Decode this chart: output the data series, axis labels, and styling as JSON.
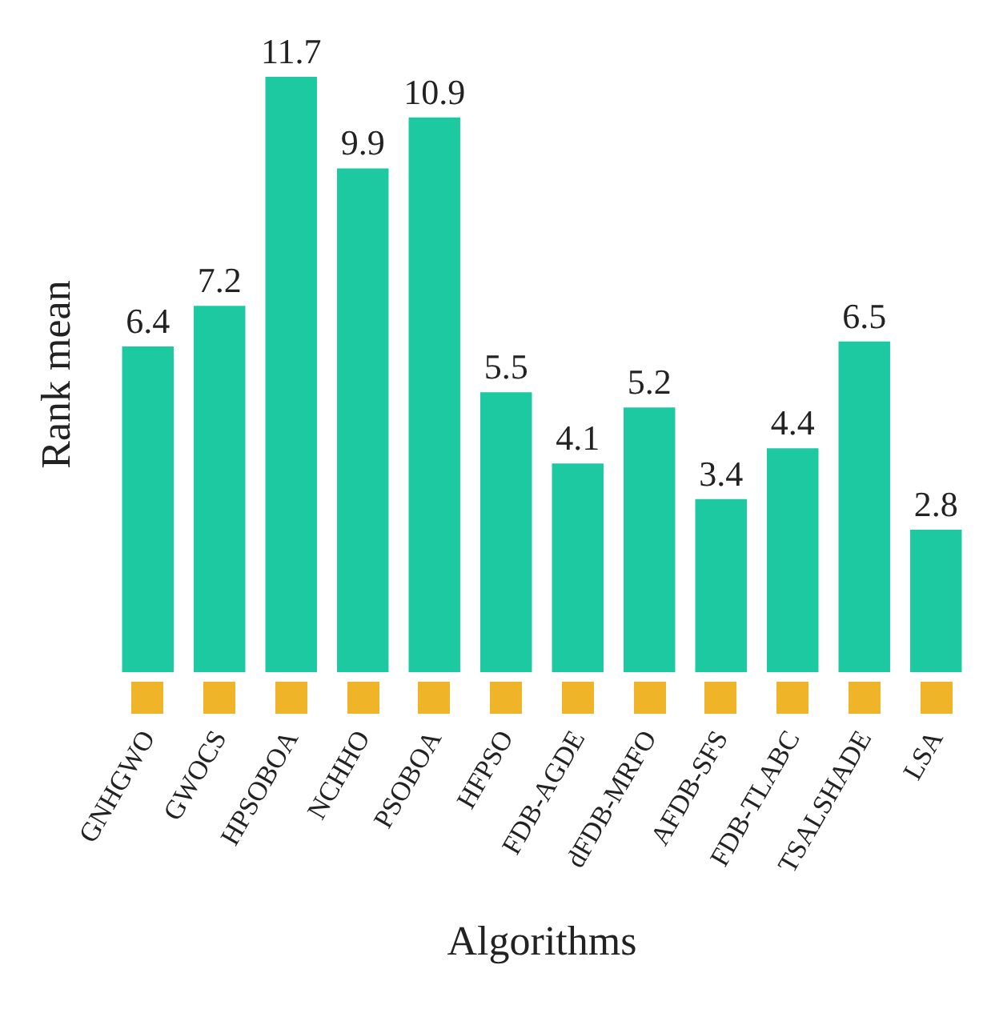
{
  "chart_data": {
    "type": "bar",
    "xlabel": "Algorithms",
    "ylabel": "Rank mean",
    "categories": [
      "GNHGWO",
      "GWOCS",
      "HPSOBOA",
      "NCHHO",
      "PSOBOA",
      "HFPSO",
      "FDB-AGDE",
      "dFDB-MRFO",
      "AFDB-SFS",
      "FDB-TLABC",
      "TSALSHADE",
      "LSA"
    ],
    "values": [
      6.4,
      7.2,
      11.7,
      9.9,
      10.9,
      5.5,
      4.1,
      5.2,
      3.4,
      4.4,
      6.5,
      2.8
    ],
    "color": "#1dc9a0",
    "data_labels": true,
    "tick_labels": "x"
  }
}
